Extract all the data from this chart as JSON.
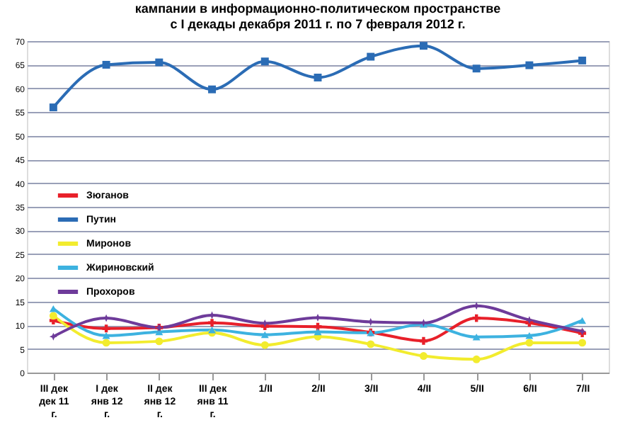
{
  "chart_data": {
    "type": "line",
    "title": "кампании в информационно-политическом пространстве\nс I декады декабря 2011 г. по 7 февраля 2012 г.",
    "categories": [
      "III дек дек 11 г.",
      "I дек янв 12 г.",
      "II дек янв 12 г.",
      "III дек янв 11 г.",
      "1/II",
      "2/II",
      "3/II",
      "4/II",
      "5/II",
      "6/II",
      "7/II"
    ],
    "series": [
      {
        "name": "Зюганов",
        "color": "#e8202a",
        "marker": "cross",
        "values": [
          11,
          9.3,
          9.5,
          10.5,
          9.8,
          9.7,
          8.5,
          6.7,
          11.5,
          10.5,
          8.3
        ]
      },
      {
        "name": "Путин",
        "color": "#2b6cb5",
        "marker": "square",
        "values": [
          56,
          65,
          65.5,
          59.8,
          65.7,
          62.3,
          66.7,
          69,
          64.2,
          64.9,
          65.9
        ]
      },
      {
        "name": "Миронов",
        "color": "#f2ec2e",
        "marker": "circle",
        "values": [
          12,
          6.3,
          6.6,
          8.4,
          5.8,
          7.6,
          6.0,
          3.5,
          2.8,
          6.3,
          6.3
        ]
      },
      {
        "name": "Жириновский",
        "color": "#3db2e0",
        "marker": "triangle",
        "values": [
          13.5,
          7.8,
          8.6,
          9,
          8,
          8.6,
          8.4,
          10.2,
          7.5,
          7.8,
          11
        ]
      },
      {
        "name": "Прохоров",
        "color": "#6e3b9a",
        "marker": "star",
        "values": [
          7.6,
          11.5,
          9.5,
          12.1,
          10.4,
          11.6,
          10.7,
          10.5,
          14.1,
          11.1,
          8.7
        ]
      }
    ],
    "ylim": [
      0,
      70
    ],
    "yticks": [
      0,
      5,
      10,
      15,
      20,
      25,
      30,
      35,
      40,
      45,
      50,
      55,
      60,
      65,
      70
    ],
    "grid": "y",
    "legend": "left",
    "line_style": "solid"
  }
}
